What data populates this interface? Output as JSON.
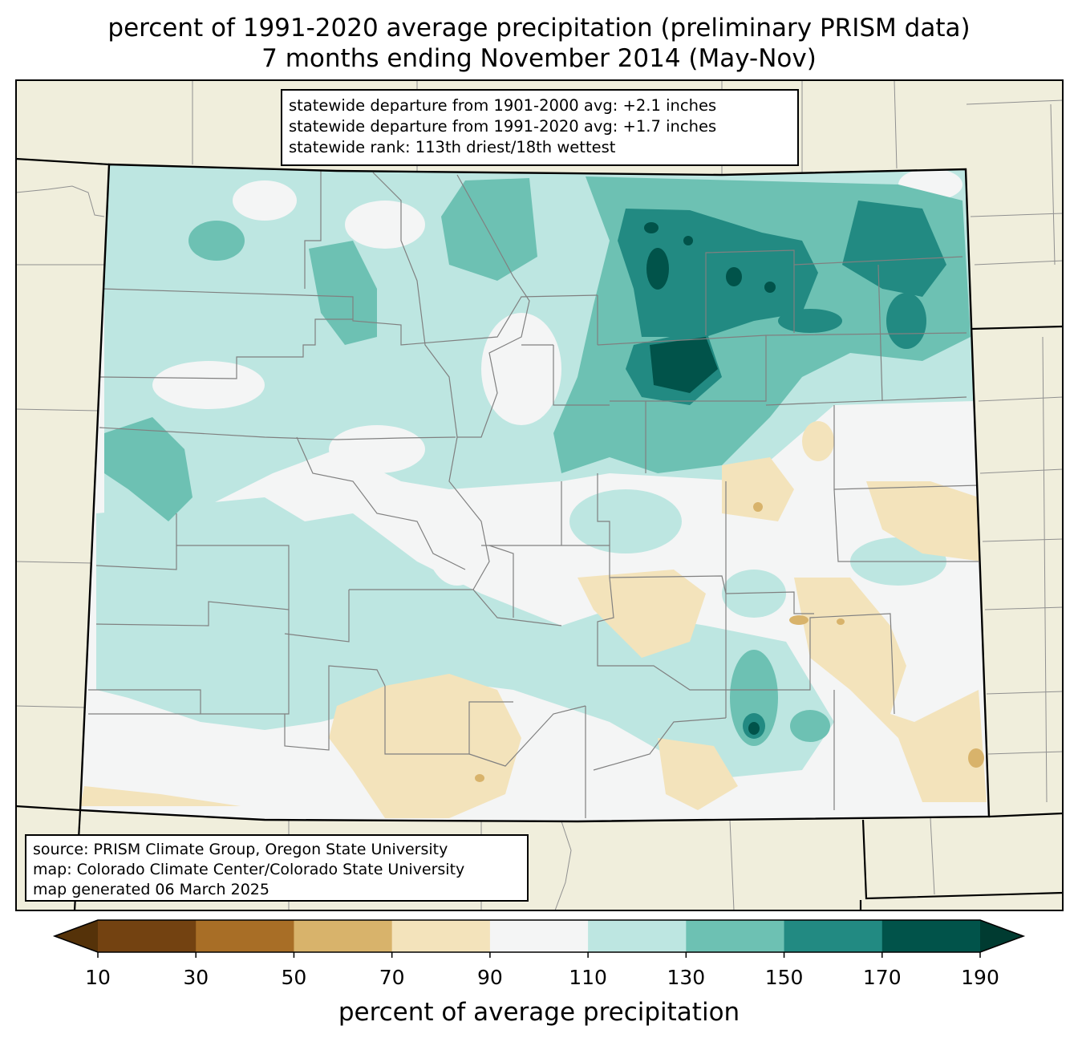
{
  "title": {
    "line1": "percent of 1991-2020 average precipitation (preliminary PRISM data)",
    "line2": "7 months ending November 2014 (May-Nov)"
  },
  "stats": {
    "departure_1901_2000": "statewide departure from 1901-2000 avg: +2.1 inches",
    "departure_1991_2020": "statewide departure from 1991-2020 avg: +1.7 inches",
    "rank": "statewide rank: 113th driest/18th wettest"
  },
  "credits": {
    "source": "source: PRISM Climate Group, Oregon State University",
    "map": "map: Colorado Climate Center/Colorado State University",
    "generated": "map generated 06 March 2025"
  },
  "colorbar": {
    "label": "percent of average precipitation",
    "ticks": [
      "10",
      "30",
      "50",
      "70",
      "90",
      "110",
      "130",
      "150",
      "170",
      "190"
    ],
    "colors": [
      "#734211",
      "#a86e26",
      "#d8b36b",
      "#f3e3bb",
      "#f4f5f5",
      "#bde6e1",
      "#6dc1b3",
      "#228a82",
      "#01534a"
    ],
    "under_color": "#553209",
    "over_color": "#003b31"
  },
  "map_colors": {
    "background": "#f0eedc",
    "state_border": "#000000",
    "county_border": "#808080"
  }
}
